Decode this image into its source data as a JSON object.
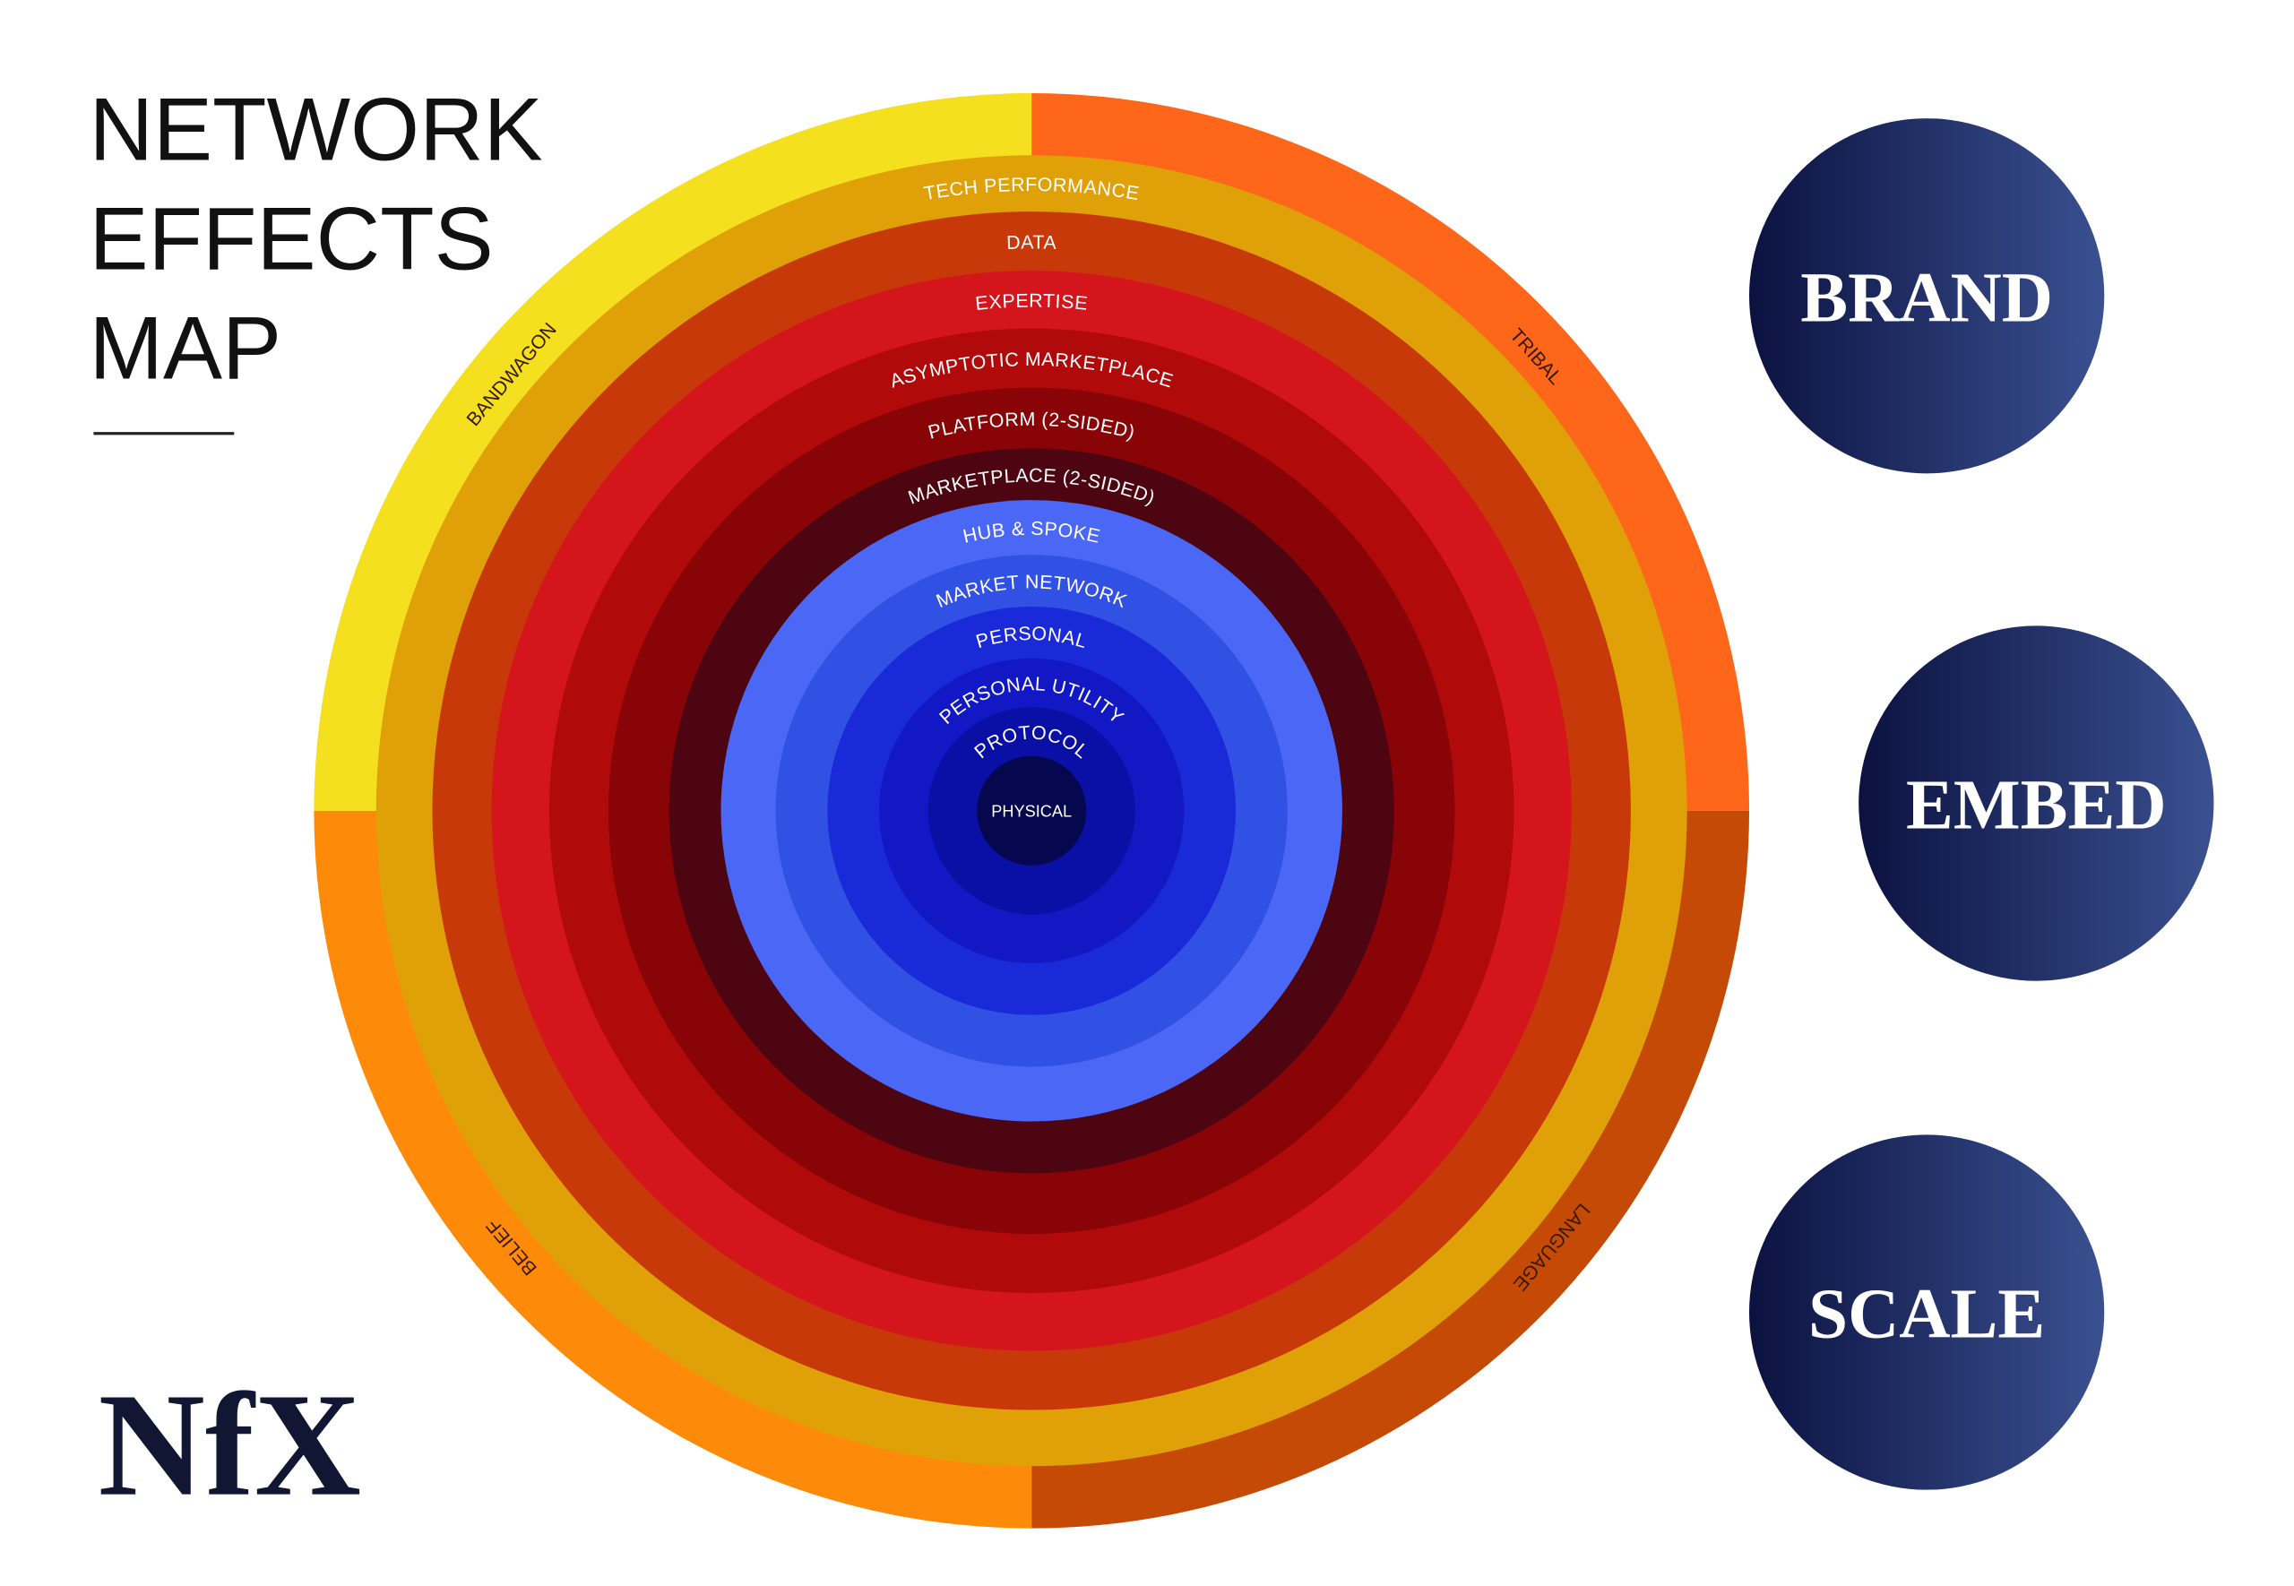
{
  "header": {
    "title_lines": [
      "NETWORK",
      "EFFECTS",
      "MAP"
    ]
  },
  "quadrants": [
    "BANDWAGON",
    "TRIBAL",
    "BELIEF",
    "LANGUAGE"
  ],
  "rings": [
    "TECH PERFORMANCE",
    "DATA",
    "EXPERTISE",
    "ASYMPTOTIC MARKETPLACE",
    "PLATFORM (2-SIDED)",
    "MARKETPLACE (2-SIDED)",
    "HUB & SPOKE",
    "MARKET NETWORK",
    "PERSONAL",
    "PERSONAL UTILITY",
    "PROTOCOL",
    "PHYSICAL"
  ],
  "pillars": [
    "BRAND",
    "EMBED",
    "SCALE"
  ],
  "logo": "NfX"
}
